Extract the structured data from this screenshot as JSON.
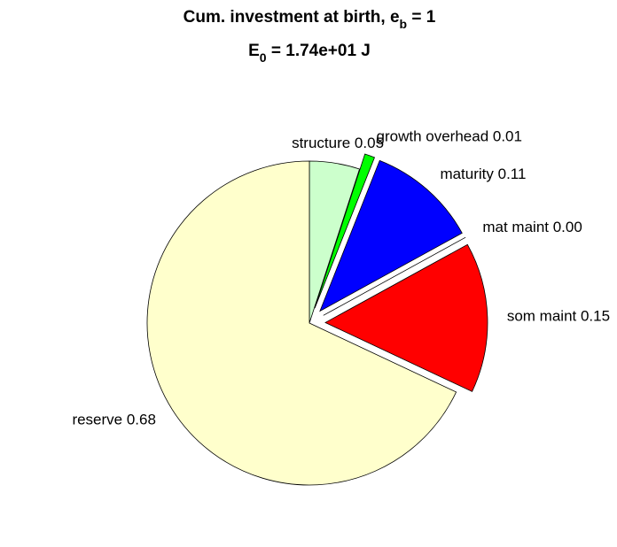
{
  "chart_data": {
    "type": "pie",
    "title": {
      "main": "Cum. investment at birth, e",
      "sub": "b",
      "rest": " = 1"
    },
    "subtitle": {
      "main": "E",
      "sub": "0",
      "rest": " = 1.74e+01 J"
    },
    "labels": [
      "structure 0.05",
      "growth overhead 0.01",
      "maturity 0.11",
      "mat maint 0.00",
      "som maint 0.15",
      "reserve 0.68"
    ],
    "values": [
      0.05,
      0.01,
      0.11,
      0.0,
      0.15,
      0.68
    ],
    "colors": [
      "#ccffcc",
      "#00ff00",
      "#0000ff",
      "#ff00ff",
      "#ff0000",
      "#ffffcc"
    ],
    "explode": [
      false,
      true,
      true,
      true,
      true,
      false
    ]
  }
}
